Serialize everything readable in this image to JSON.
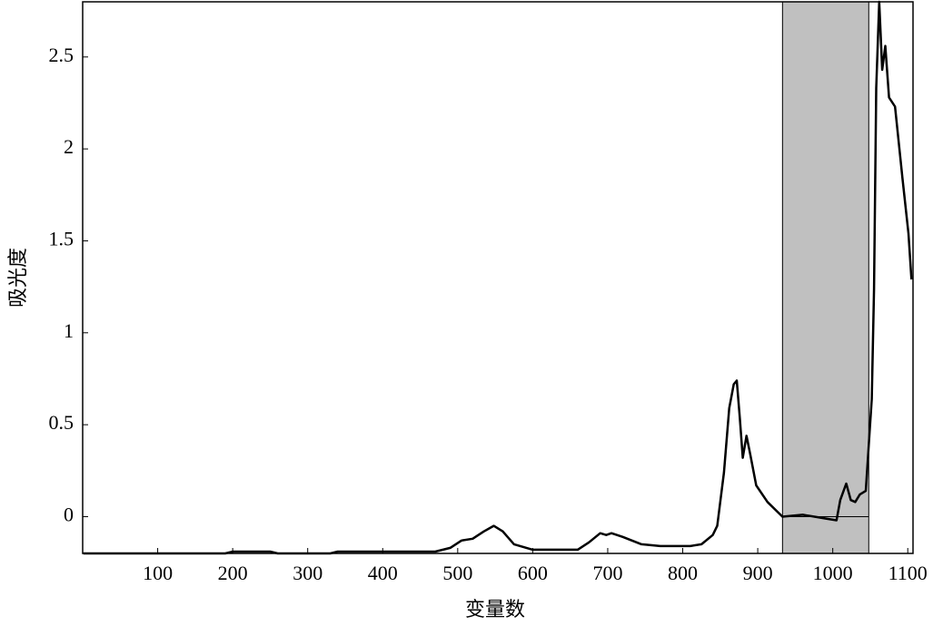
{
  "chart_data": {
    "type": "line",
    "x_label": "变量数",
    "y_label": "吸光度",
    "x": [
      1,
      190,
      200,
      250,
      260,
      330,
      340,
      470,
      490,
      505,
      520,
      535,
      548,
      560,
      575,
      600,
      660,
      675,
      690,
      698,
      705,
      720,
      745,
      770,
      810,
      825,
      840,
      846,
      855,
      862,
      868,
      872,
      876,
      880,
      885,
      890,
      898,
      913,
      933,
      960,
      990,
      1005,
      1010,
      1018,
      1024,
      1030,
      1036,
      1044,
      1048,
      1052,
      1055,
      1058,
      1062,
      1066,
      1070,
      1075,
      1083,
      1093,
      1101,
      1105
    ],
    "values": [
      -0.2,
      -0.2,
      -0.19,
      -0.19,
      -0.2,
      -0.2,
      -0.19,
      -0.19,
      -0.17,
      -0.13,
      -0.12,
      -0.08,
      -0.05,
      -0.08,
      -0.15,
      -0.18,
      -0.18,
      -0.14,
      -0.09,
      -0.1,
      -0.09,
      -0.11,
      -0.15,
      -0.16,
      -0.16,
      -0.15,
      -0.1,
      -0.05,
      0.24,
      0.59,
      0.72,
      0.74,
      0.54,
      0.32,
      0.44,
      0.34,
      0.17,
      0.08,
      0.0,
      0.01,
      -0.01,
      -0.02,
      0.09,
      0.18,
      0.09,
      0.08,
      0.12,
      0.14,
      0.39,
      0.64,
      1.24,
      2.33,
      2.8,
      2.43,
      2.56,
      2.28,
      2.23,
      1.84,
      1.54,
      1.29
    ],
    "color": "#000000",
    "highlight_range": [
      933,
      1048
    ],
    "highlight_color": "#c0c0c0",
    "xlim": [
      0,
      1107
    ],
    "ylim": [
      -0.2,
      2.8
    ],
    "xticks": [
      100,
      200,
      300,
      400,
      500,
      600,
      700,
      800,
      900,
      1000,
      1100
    ],
    "yticks": [
      0,
      0.5,
      1,
      1.5,
      2,
      2.5
    ]
  }
}
